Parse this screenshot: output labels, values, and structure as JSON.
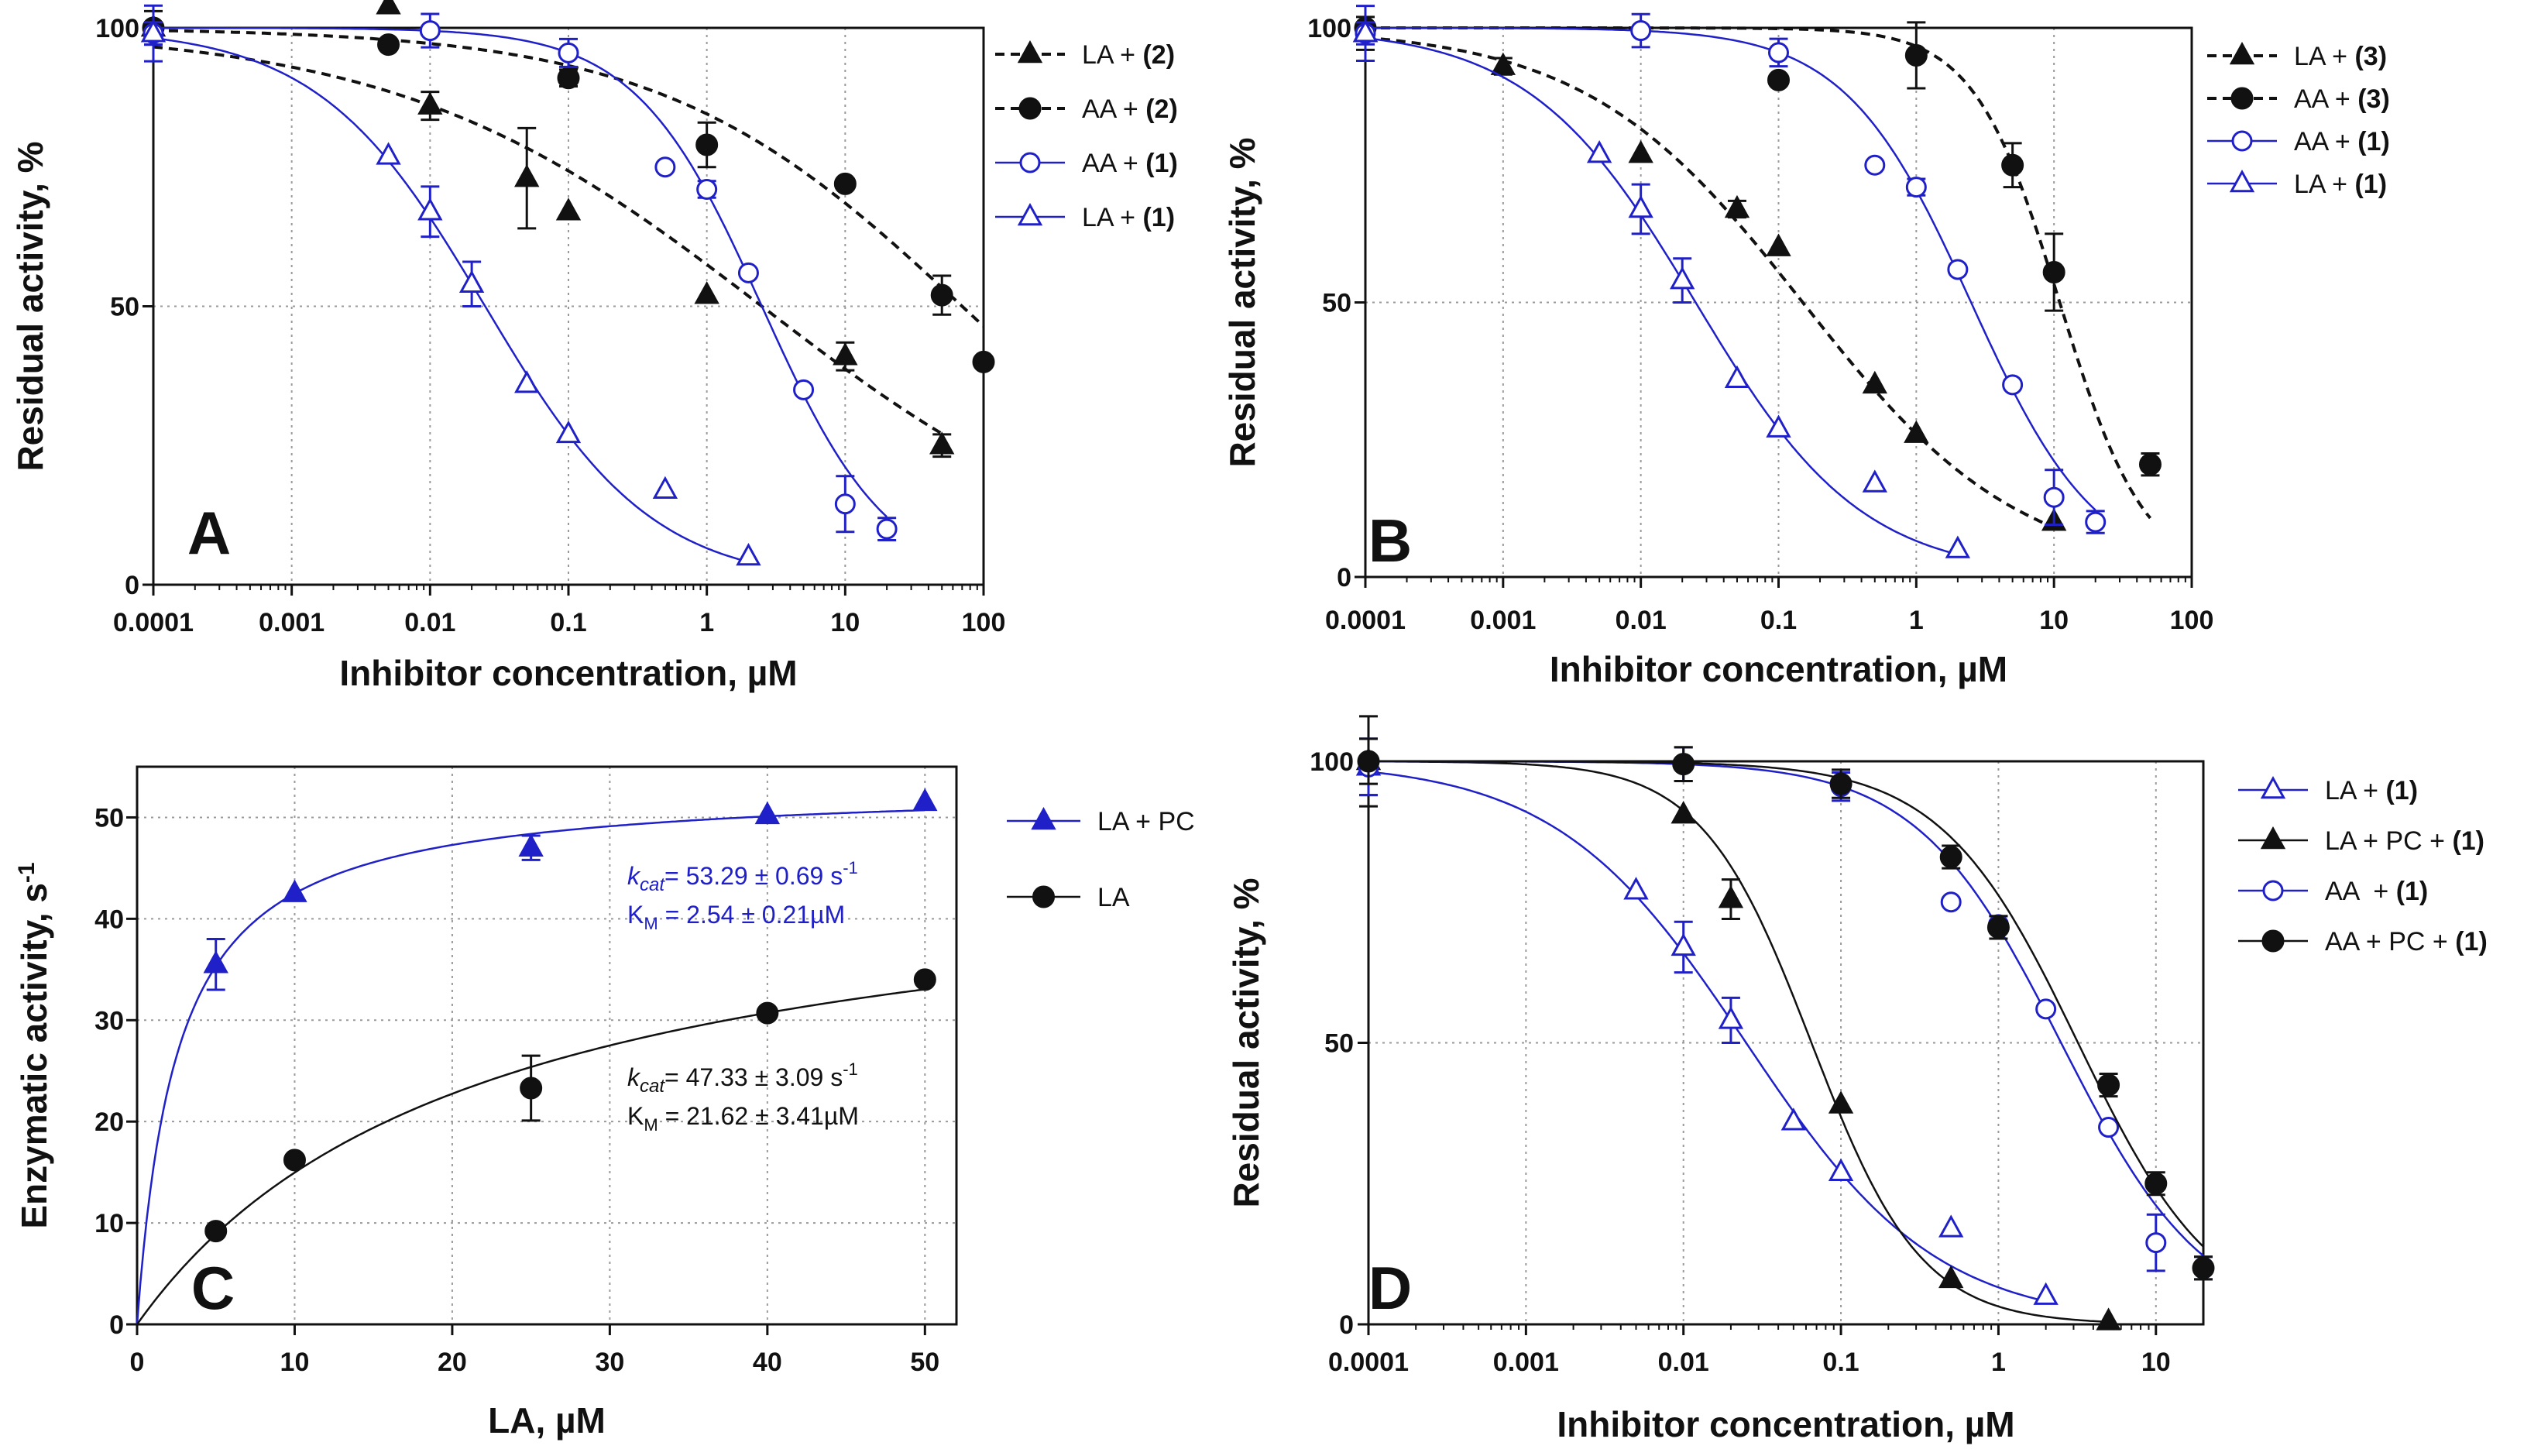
{
  "colors": {
    "black": "#111111",
    "blue": "#2020c8",
    "grid": "#9a9a9a"
  },
  "chart_data": [
    {
      "id": "A",
      "type": "scatter",
      "panel_label": "A",
      "xlabel": "Inhibitor concentration, µM",
      "ylabel": "Residual activity, %",
      "xscale": "log",
      "xlim": [
        0.0001,
        100
      ],
      "ylim": [
        0,
        100
      ],
      "xticks": [
        0.0001,
        0.001,
        0.01,
        0.1,
        1,
        10,
        100
      ],
      "xtick_labels": [
        "0.0001",
        "0.001",
        "0.01",
        "0.1",
        "1",
        "10",
        "100"
      ],
      "yticks": [
        0,
        50,
        100
      ],
      "ytick_labels": [
        "0",
        "50",
        "100"
      ],
      "grid": true,
      "legend_position": "outside-right",
      "series": [
        {
          "name": "LA + ",
          "bold": "(2)",
          "color": "black",
          "marker": "triangle-filled",
          "line": "dashed",
          "x": [
            0.0001,
            0.005,
            0.01,
            0.05,
            0.1,
            1,
            10,
            50
          ],
          "y": [
            100,
            104,
            86,
            73,
            67,
            52,
            41,
            25
          ],
          "err": [
            3,
            0,
            2.5,
            9,
            0,
            0,
            2.5,
            2
          ],
          "fit": {
            "top": 100,
            "bottom": 0,
            "ic50": 2.5,
            "hill": 0.33,
            "xmax": 50
          }
        },
        {
          "name": "AA + ",
          "bold": "(2)",
          "color": "black",
          "marker": "circle-filled",
          "line": "dashed",
          "x": [
            0.0001,
            0.005,
            0.1,
            1,
            10,
            50,
            100
          ],
          "y": [
            100,
            97,
            91,
            79,
            72,
            52,
            40
          ],
          "err": [
            0,
            0,
            1.5,
            4,
            0,
            3.5,
            0
          ],
          "fit": {
            "top": 100,
            "bottom": 0,
            "ic50": 70,
            "hill": 0.4,
            "xmax": 100
          }
        },
        {
          "name": "AA + ",
          "bold": "(1)",
          "color": "blue",
          "marker": "circle-open",
          "line": "solid",
          "x": [
            0.0001,
            0.01,
            0.1,
            0.5,
            1,
            2,
            5,
            10,
            20
          ],
          "y": [
            99,
            99.5,
            95.5,
            75,
            71,
            56,
            35,
            14.5,
            10
          ],
          "err": [
            5,
            3,
            2.5,
            0,
            1.5,
            0,
            0,
            5,
            2
          ],
          "fit": {
            "top": 100,
            "bottom": 0,
            "ic50": 2.5,
            "hill": 0.95,
            "xmax": 20
          }
        },
        {
          "name": "LA + ",
          "bold": "(1)",
          "color": "blue",
          "marker": "triangle-open",
          "line": "solid",
          "x": [
            0.0001,
            0.005,
            0.01,
            0.02,
            0.05,
            0.1,
            0.5,
            2
          ],
          "y": [
            99,
            77,
            67,
            54,
            36,
            27,
            17,
            5
          ],
          "err": [
            2,
            0,
            4.5,
            4,
            0,
            0,
            0,
            0
          ],
          "fit": {
            "top": 100,
            "bottom": 0,
            "ic50": 0.025,
            "hill": 0.72,
            "xmax": 2
          }
        }
      ]
    },
    {
      "id": "B",
      "type": "scatter",
      "panel_label": "B",
      "xlabel": "Inhibitor concentration, µM",
      "ylabel": "Residual activity, %",
      "xscale": "log",
      "xlim": [
        0.0001,
        100
      ],
      "ylim": [
        0,
        100
      ],
      "xticks": [
        0.0001,
        0.001,
        0.01,
        0.1,
        1,
        10,
        100
      ],
      "xtick_labels": [
        "0.0001",
        "0.001",
        "0.01",
        "0.1",
        "1",
        "10",
        "100"
      ],
      "yticks": [
        0,
        50,
        100
      ],
      "ytick_labels": [
        "0",
        "50",
        "100"
      ],
      "grid": true,
      "legend_position": "outside-right",
      "series": [
        {
          "name": "LA + ",
          "bold": "(3)",
          "color": "black",
          "marker": "triangle-filled",
          "line": "dashed",
          "x": [
            0.0001,
            0.001,
            0.01,
            0.05,
            0.1,
            0.5,
            1,
            10
          ],
          "y": [
            99,
            93,
            77,
            67,
            60,
            35,
            26,
            10
          ],
          "err": [
            3,
            1.5,
            0,
            1.5,
            0,
            0,
            0,
            0
          ],
          "fit": {
            "top": 100,
            "bottom": 0,
            "ic50": 0.15,
            "hill": 0.55,
            "xmax": 10
          }
        },
        {
          "name": "AA + ",
          "bold": "(3)",
          "color": "black",
          "marker": "circle-filled",
          "line": "dashed",
          "x": [
            0.0001,
            0.1,
            1,
            5,
            10,
            50
          ],
          "y": [
            100,
            90.5,
            95,
            75,
            55.5,
            20.5
          ],
          "err": [
            0,
            0,
            6,
            4,
            7,
            2
          ],
          "fit": {
            "top": 100,
            "bottom": 0,
            "ic50": 11,
            "hill": 1.4,
            "xmax": 50
          }
        },
        {
          "name": "AA + ",
          "bold": "(1)",
          "color": "blue",
          "marker": "circle-open",
          "line": "solid",
          "x": [
            0.0001,
            0.01,
            0.1,
            0.5,
            1,
            2,
            5,
            10,
            20
          ],
          "y": [
            99,
            99.5,
            95.5,
            75,
            71,
            56,
            35,
            14.5,
            10
          ],
          "err": [
            5,
            3,
            2.5,
            0,
            1.5,
            0,
            0,
            5,
            2
          ],
          "fit": {
            "top": 100,
            "bottom": 0,
            "ic50": 2.5,
            "hill": 0.95,
            "xmax": 20
          }
        },
        {
          "name": "LA + ",
          "bold": "(1)",
          "color": "blue",
          "marker": "triangle-open",
          "line": "solid",
          "x": [
            0.0001,
            0.005,
            0.01,
            0.02,
            0.05,
            0.1,
            0.5,
            2
          ],
          "y": [
            99,
            77,
            67,
            54,
            36,
            27,
            17,
            5
          ],
          "err": [
            2,
            0,
            4.5,
            4,
            0,
            0,
            0,
            0
          ],
          "fit": {
            "top": 100,
            "bottom": 0,
            "ic50": 0.025,
            "hill": 0.72,
            "xmax": 2
          }
        }
      ]
    },
    {
      "id": "C",
      "type": "scatter",
      "panel_label": "C",
      "xlabel": "LA, µM",
      "ylabel": "Enzymatic activity, s",
      "ylabel_sup": "-1",
      "xscale": "linear",
      "xlim": [
        0,
        52
      ],
      "ylim": [
        0,
        55
      ],
      "xticks": [
        0,
        10,
        20,
        30,
        40,
        50
      ],
      "xtick_labels": [
        "0",
        "10",
        "20",
        "30",
        "40",
        "50"
      ],
      "yticks": [
        0,
        10,
        20,
        30,
        40,
        50
      ],
      "ytick_labels": [
        "0",
        "10",
        "20",
        "30",
        "40",
        "50"
      ],
      "grid": true,
      "legend_position": "outside-right",
      "series": [
        {
          "name": "LA + PC",
          "bold": "",
          "color": "blue",
          "marker": "triangle-filled",
          "line": "solid",
          "x": [
            5,
            10,
            25,
            40,
            50
          ],
          "y": [
            35.5,
            42.5,
            47,
            50.2,
            51.5
          ],
          "err": [
            2.5,
            0,
            1.2,
            0,
            0
          ],
          "fit": {
            "vmax": 53.29,
            "km": 2.54,
            "xmax": 50
          }
        },
        {
          "name": "LA",
          "bold": "",
          "color": "black",
          "marker": "circle-filled",
          "line": "solid",
          "x": [
            5,
            10,
            25,
            40,
            50
          ],
          "y": [
            9.2,
            16.2,
            23.3,
            30.7,
            34
          ],
          "err": [
            0,
            0,
            3.2,
            0,
            0
          ],
          "fit": {
            "vmax": 47.33,
            "km": 21.62,
            "xmax": 50
          }
        }
      ],
      "annotations": [
        {
          "color": "blue",
          "kcat_label": "k",
          "kcat_sub": "cat",
          "kcat_value": "= 53.29 ± 0.69 s",
          "kcat_sup": "-1",
          "km_label": "K",
          "km_sub": "M",
          "km_value": " = 2.54 ± 0.21µM"
        },
        {
          "color": "black",
          "kcat_label": "k",
          "kcat_sub": "cat",
          "kcat_value": "= 47.33 ± 3.09 s",
          "kcat_sup": "-1",
          "km_label": "K",
          "km_sub": "M",
          "km_value": " = 21.62 ± 3.41µM"
        }
      ]
    },
    {
      "id": "D",
      "type": "scatter",
      "panel_label": "D",
      "xlabel": "Inhibitor concentration, µM",
      "ylabel": "Residual activity, %",
      "xscale": "log",
      "xlim": [
        0.0001,
        20
      ],
      "ylim": [
        0,
        100
      ],
      "xticks": [
        0.0001,
        0.001,
        0.01,
        0.1,
        1,
        10
      ],
      "xtick_labels": [
        "0.0001",
        "0.001",
        "0.01",
        "0.1",
        "1",
        "10"
      ],
      "yticks": [
        0,
        50,
        100
      ],
      "ytick_labels": [
        "0",
        "50",
        "100"
      ],
      "grid": true,
      "legend_position": "outside-right",
      "series": [
        {
          "name": "LA + ",
          "bold": "(1)",
          "color": "blue",
          "marker": "triangle-open",
          "line": "solid",
          "x": [
            0.0001,
            0.005,
            0.01,
            0.02,
            0.05,
            0.1,
            0.5,
            2
          ],
          "y": [
            99,
            77,
            67,
            54,
            36,
            27,
            17,
            5
          ],
          "err": [
            5,
            0,
            4.5,
            4,
            0,
            0,
            0,
            0
          ],
          "fit": {
            "top": 100,
            "bottom": 0,
            "ic50": 0.025,
            "hill": 0.72,
            "xmax": 2
          }
        },
        {
          "name": "LA + PC + ",
          "bold": "(1)",
          "color": "black",
          "marker": "triangle-filled",
          "line": "solid",
          "x": [
            0.0001,
            0.01,
            0.02,
            0.1,
            0.5,
            5
          ],
          "y": [
            100,
            90.5,
            75.5,
            39,
            8,
            0.5
          ],
          "err": [
            8,
            0,
            3.5,
            0,
            0,
            0
          ],
          "fit": {
            "top": 100,
            "bottom": 0,
            "ic50": 0.065,
            "hill": 1.25,
            "xmax": 5
          }
        },
        {
          "name": "AA  + ",
          "bold": "(1)",
          "color": "blue",
          "marker": "circle-open",
          "line": "solid",
          "x": [
            0.0001,
            0.01,
            0.1,
            0.5,
            1,
            2,
            5,
            10,
            20
          ],
          "y": [
            99,
            99.5,
            95.5,
            75,
            71,
            56,
            35,
            14.5,
            10
          ],
          "err": [
            5,
            3,
            2.5,
            0,
            1.5,
            0,
            0,
            5,
            2
          ],
          "fit": {
            "top": 100,
            "bottom": 0,
            "ic50": 2.5,
            "hill": 0.95,
            "xmax": 20
          }
        },
        {
          "name": "AA + PC + ",
          "bold": "(1)",
          "color": "black",
          "marker": "circle-filled",
          "line": "solid",
          "x": [
            0.0001,
            0.01,
            0.1,
            0.5,
            1,
            5,
            10,
            20
          ],
          "y": [
            100,
            99.5,
            96,
            83,
            70.5,
            42.5,
            25,
            10
          ],
          "err": [
            4,
            3,
            2.5,
            2,
            2,
            2,
            2,
            2
          ],
          "fit": {
            "top": 100,
            "bottom": 0,
            "ic50": 3.2,
            "hill": 1.0,
            "xmax": 20
          }
        }
      ]
    }
  ]
}
